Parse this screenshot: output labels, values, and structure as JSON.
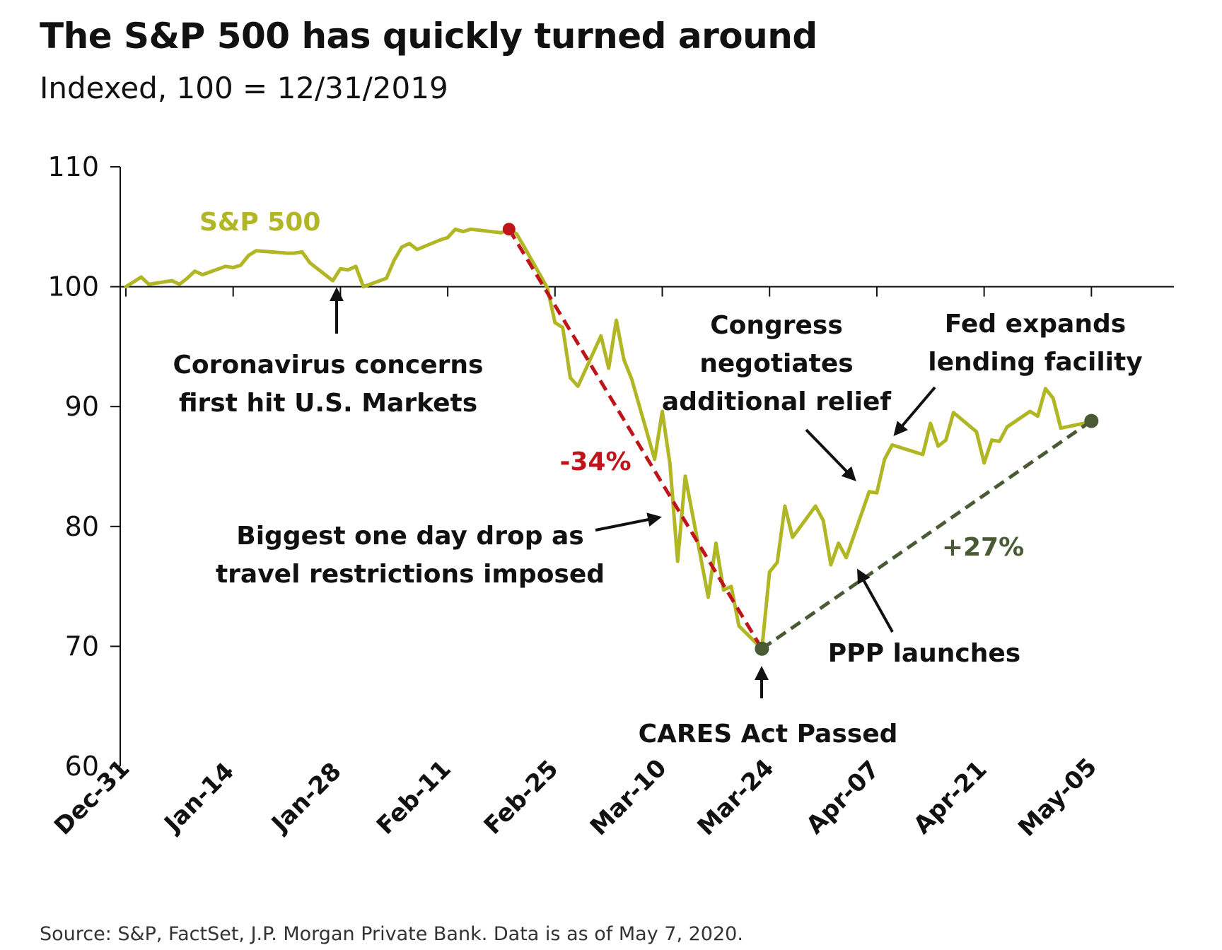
{
  "header": {
    "title": "The S&P 500 has quickly turned around",
    "subtitle": "Indexed, 100 = 12/31/2019"
  },
  "footer": {
    "source": "Source: S&P, FactSet, J.P. Morgan Private Bank. Data is as of May 7, 2020."
  },
  "colors": {
    "series": "#b1b624",
    "decline": "#c0141b",
    "recovery": "#4a5a35",
    "axis": "#111111"
  },
  "chart_data": {
    "type": "line",
    "title": "The S&P 500 has quickly turned around",
    "subtitle": "Indexed, 100 = 12/31/2019",
    "xlabel": "",
    "ylabel": "",
    "ylim": [
      60,
      110
    ],
    "yticks": [
      60,
      70,
      80,
      90,
      100,
      110
    ],
    "x_tick_labels": [
      "Dec-31",
      "Jan-14",
      "Jan-28",
      "Feb-11",
      "Feb-25",
      "Mar-10",
      "Mar-24",
      "Apr-07",
      "Apr-21",
      "May-05"
    ],
    "x_tick_dates": [
      "2019-12-31",
      "2020-01-14",
      "2020-01-28",
      "2020-02-11",
      "2020-02-25",
      "2020-03-10",
      "2020-03-24",
      "2020-04-07",
      "2020-04-21",
      "2020-05-05"
    ],
    "x_range": [
      "2019-12-31",
      "2020-05-15"
    ],
    "grid": false,
    "series": [
      {
        "name": "S&P 500",
        "points": [
          [
            "2019-12-31",
            100.0
          ],
          [
            "2020-01-02",
            100.8
          ],
          [
            "2020-01-03",
            100.2
          ],
          [
            "2020-01-06",
            100.5
          ],
          [
            "2020-01-07",
            100.2
          ],
          [
            "2020-01-08",
            100.7
          ],
          [
            "2020-01-09",
            101.3
          ],
          [
            "2020-01-10",
            101.0
          ],
          [
            "2020-01-13",
            101.7
          ],
          [
            "2020-01-14",
            101.6
          ],
          [
            "2020-01-15",
            101.8
          ],
          [
            "2020-01-16",
            102.6
          ],
          [
            "2020-01-17",
            103.0
          ],
          [
            "2020-01-21",
            102.8
          ],
          [
            "2020-01-22",
            102.8
          ],
          [
            "2020-01-23",
            102.9
          ],
          [
            "2020-01-24",
            102.0
          ],
          [
            "2020-01-27",
            100.5
          ],
          [
            "2020-01-28",
            101.5
          ],
          [
            "2020-01-29",
            101.4
          ],
          [
            "2020-01-30",
            101.7
          ],
          [
            "2020-01-31",
            100.0
          ],
          [
            "2020-02-03",
            100.7
          ],
          [
            "2020-02-04",
            102.2
          ],
          [
            "2020-02-05",
            103.3
          ],
          [
            "2020-02-06",
            103.6
          ],
          [
            "2020-02-07",
            103.1
          ],
          [
            "2020-02-10",
            103.9
          ],
          [
            "2020-02-11",
            104.1
          ],
          [
            "2020-02-12",
            104.8
          ],
          [
            "2020-02-13",
            104.6
          ],
          [
            "2020-02-14",
            104.8
          ],
          [
            "2020-02-18",
            104.5
          ],
          [
            "2020-02-19",
            104.8
          ],
          [
            "2020-02-20",
            104.4
          ],
          [
            "2020-02-21",
            103.3
          ],
          [
            "2020-02-24",
            99.9
          ],
          [
            "2020-02-25",
            97.0
          ],
          [
            "2020-02-26",
            96.6
          ],
          [
            "2020-02-27",
            92.4
          ],
          [
            "2020-02-28",
            91.7
          ],
          [
            "2020-03-02",
            95.9
          ],
          [
            "2020-03-03",
            93.2
          ],
          [
            "2020-03-04",
            97.2
          ],
          [
            "2020-03-05",
            93.9
          ],
          [
            "2020-03-06",
            92.3
          ],
          [
            "2020-03-09",
            85.6
          ],
          [
            "2020-03-10",
            89.6
          ],
          [
            "2020-03-11",
            85.2
          ],
          [
            "2020-03-12",
            77.1
          ],
          [
            "2020-03-13",
            84.2
          ],
          [
            "2020-03-16",
            74.1
          ],
          [
            "2020-03-17",
            78.6
          ],
          [
            "2020-03-18",
            74.7
          ],
          [
            "2020-03-19",
            75.0
          ],
          [
            "2020-03-20",
            71.7
          ],
          [
            "2020-03-23",
            69.8
          ],
          [
            "2020-03-24",
            76.2
          ],
          [
            "2020-03-25",
            77.0
          ],
          [
            "2020-03-26",
            81.7
          ],
          [
            "2020-03-27",
            79.1
          ],
          [
            "2020-03-30",
            81.7
          ],
          [
            "2020-03-31",
            80.5
          ],
          [
            "2020-04-01",
            76.8
          ],
          [
            "2020-04-02",
            78.6
          ],
          [
            "2020-04-03",
            77.4
          ],
          [
            "2020-04-06",
            82.9
          ],
          [
            "2020-04-07",
            82.8
          ],
          [
            "2020-04-08",
            85.6
          ],
          [
            "2020-04-09",
            86.8
          ],
          [
            "2020-04-13",
            86.0
          ],
          [
            "2020-04-14",
            88.6
          ],
          [
            "2020-04-15",
            86.7
          ],
          [
            "2020-04-16",
            87.2
          ],
          [
            "2020-04-17",
            89.5
          ],
          [
            "2020-04-20",
            87.9
          ],
          [
            "2020-04-21",
            85.3
          ],
          [
            "2020-04-22",
            87.2
          ],
          [
            "2020-04-23",
            87.1
          ],
          [
            "2020-04-24",
            88.3
          ],
          [
            "2020-04-27",
            89.6
          ],
          [
            "2020-04-28",
            89.2
          ],
          [
            "2020-04-29",
            91.5
          ],
          [
            "2020-04-30",
            90.7
          ],
          [
            "2020-05-01",
            88.2
          ],
          [
            "2020-05-04",
            88.6
          ],
          [
            "2020-05-05",
            88.8
          ]
        ]
      }
    ],
    "series_label": "S&P 500",
    "overlays": [
      {
        "label": "-34%",
        "from": [
          "2020-02-19",
          104.8
        ],
        "to": [
          "2020-03-23",
          69.8
        ],
        "style": "dashed"
      },
      {
        "label": "+27%",
        "from": [
          "2020-03-23",
          69.8
        ],
        "to": [
          "2020-05-05",
          88.8
        ],
        "style": "dashed"
      }
    ],
    "annotations": [
      {
        "lines": [
          "Coronavirus concerns",
          "first hit U.S. Markets"
        ]
      },
      {
        "lines": [
          "Biggest one day drop as",
          "travel restrictions imposed"
        ]
      },
      {
        "lines": [
          "Congress",
          "negotiates",
          "additional relief"
        ]
      },
      {
        "lines": [
          "Fed expands",
          "lending facility"
        ]
      },
      {
        "lines": [
          "CARES Act Passed"
        ]
      },
      {
        "lines": [
          "PPP launches"
        ]
      }
    ]
  }
}
